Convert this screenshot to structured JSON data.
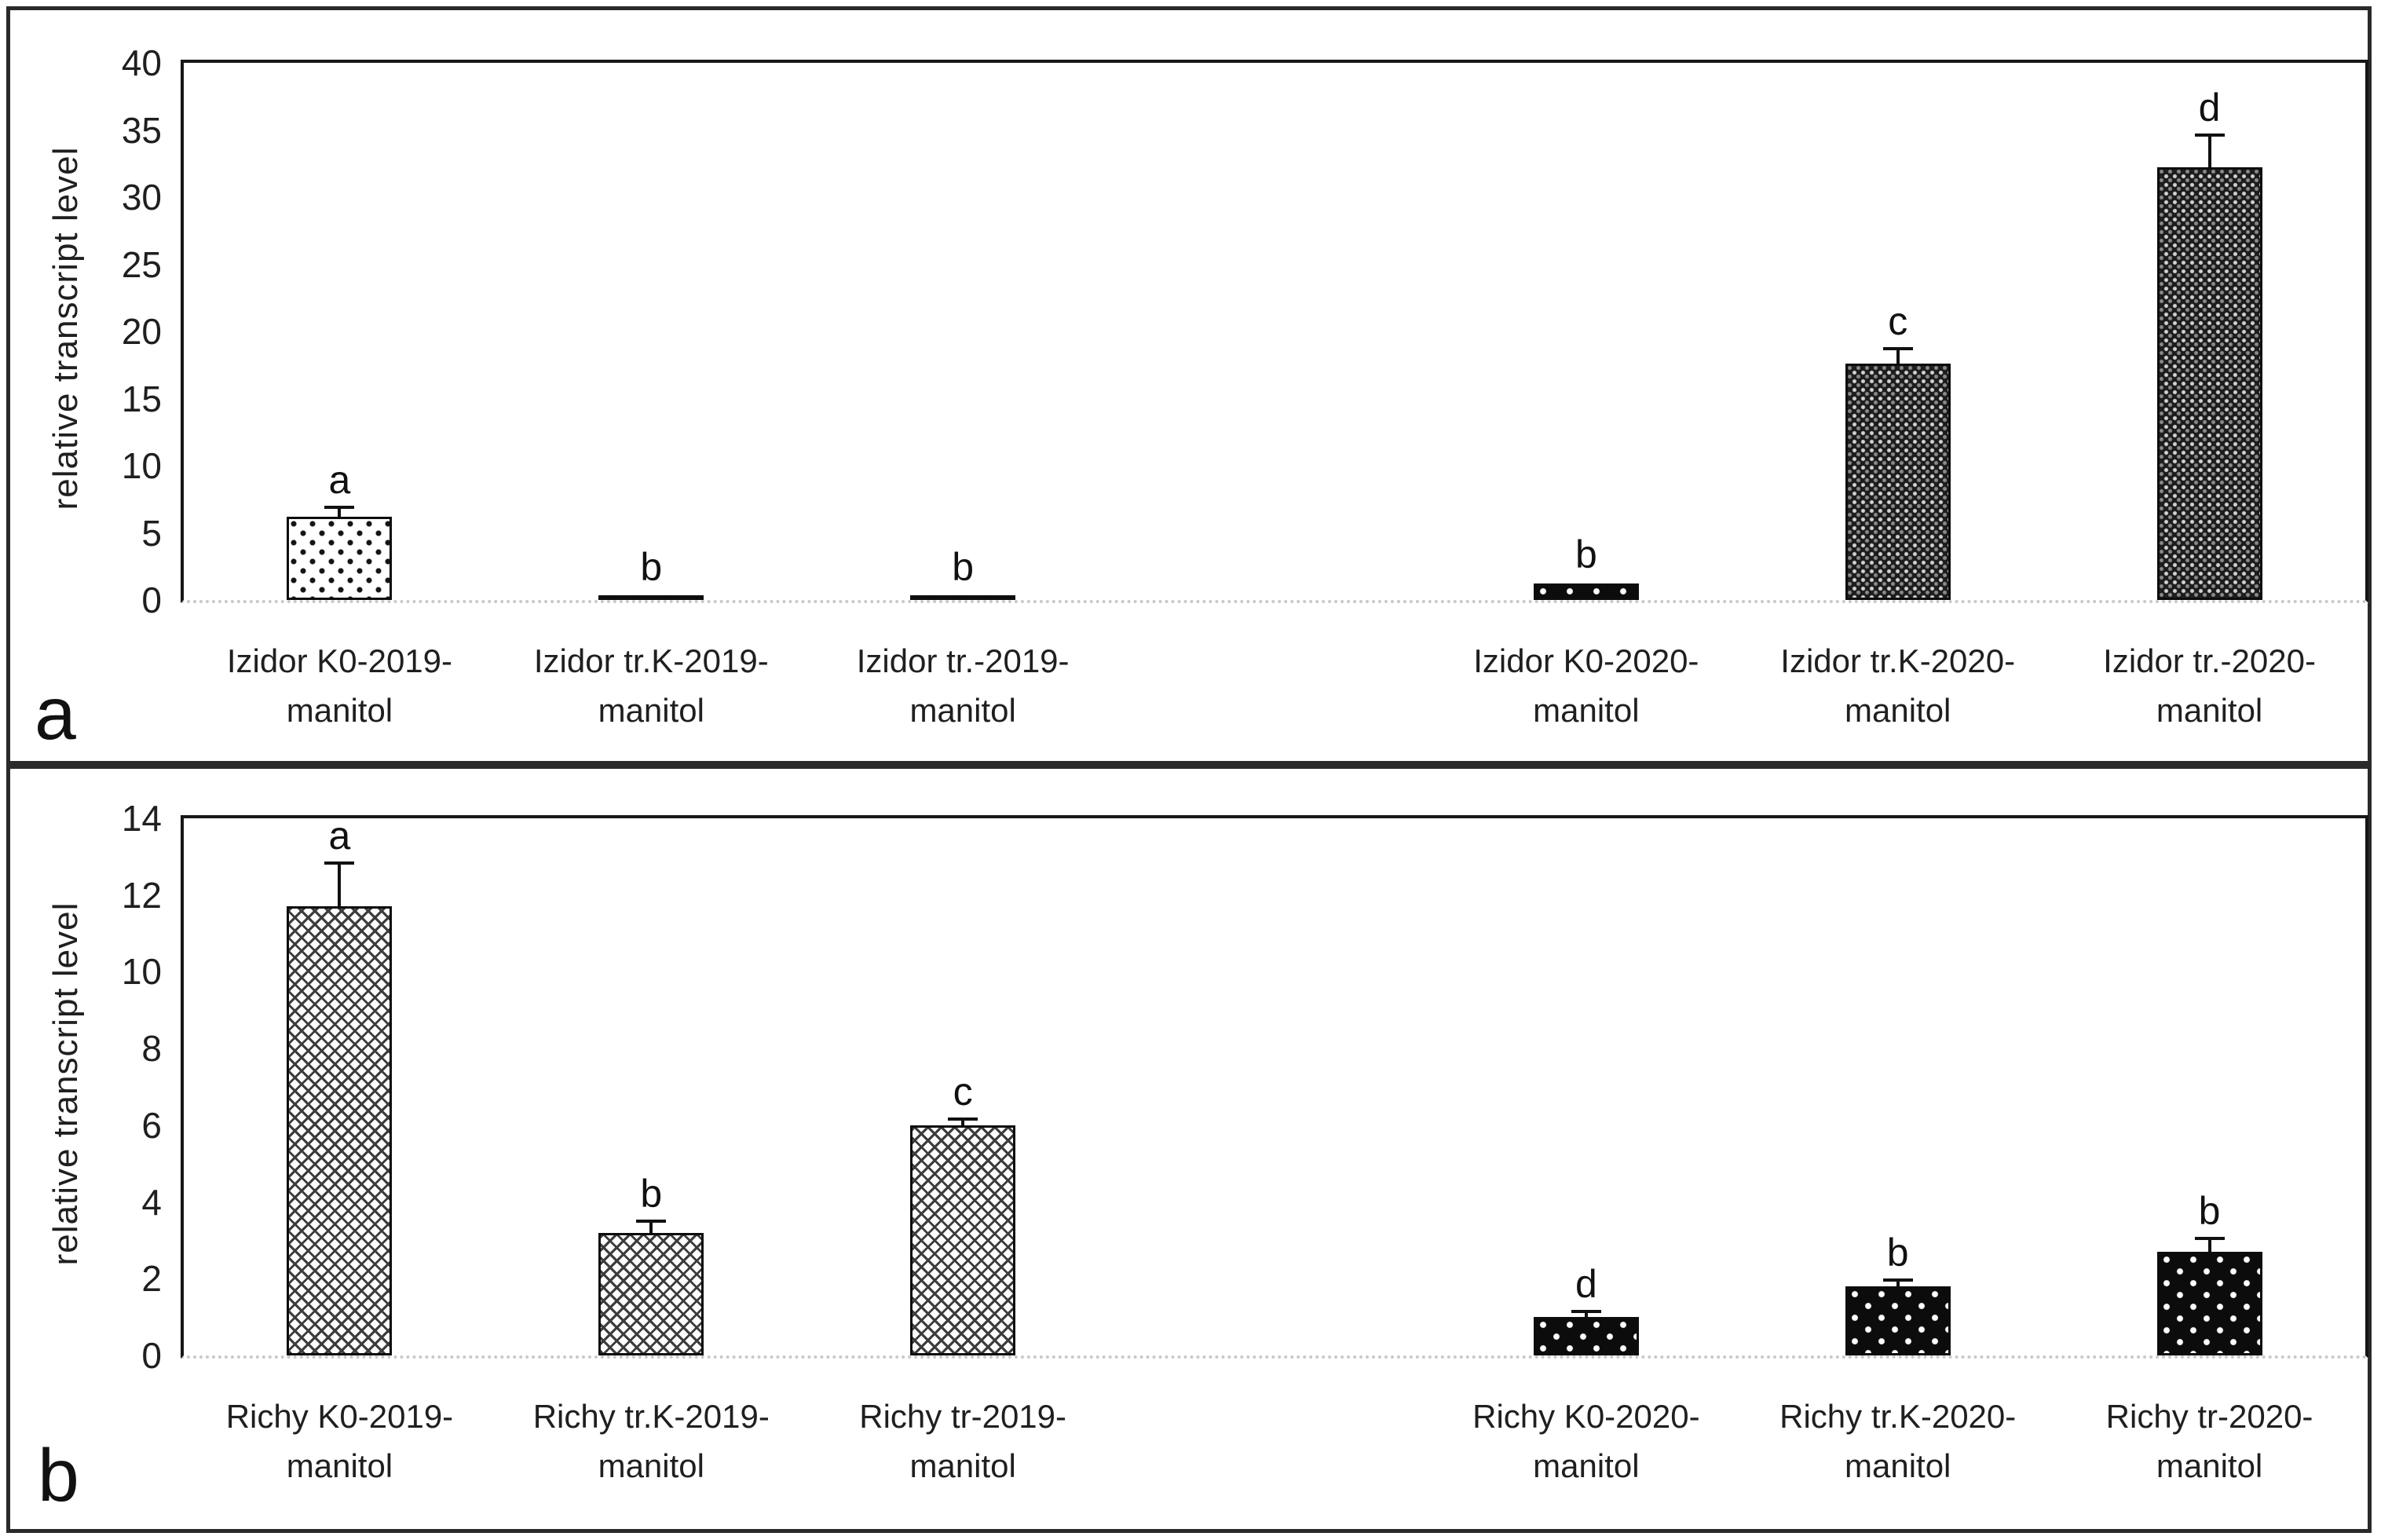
{
  "figure": {
    "background": "#ffffff",
    "panel_border_color": "#2a2a2a",
    "ink_color": "#111111",
    "baseline_dash_color": "#c9c9c9"
  },
  "chart_data": [
    {
      "type": "bar",
      "panel_letter": "a",
      "title": "",
      "xlabel": "",
      "ylabel": "relative transcript level",
      "ylim": [
        0,
        40
      ],
      "ytick_interval": 5,
      "grid": false,
      "legend": null,
      "n_slots": 7,
      "slots": [
        0,
        1,
        2,
        4,
        5,
        6
      ],
      "categories": [
        "Izidor K0-2019-\nmanitol",
        "Izidor tr.K-2019-\nmanitol",
        "Izidor tr.-2019-\nmanitol",
        "Izidor K0-2020-\nmanitol",
        "Izidor tr.K-2020-\nmanitol",
        "Izidor tr.-2020-\nmanitol"
      ],
      "values": [
        6.2,
        0.3,
        0.3,
        1.2,
        17.6,
        32.2
      ],
      "errors": [
        0.6,
        0,
        0,
        0,
        1.0,
        2.3
      ],
      "sig_letters": [
        "a",
        "b",
        "b",
        "b",
        "c",
        "d"
      ],
      "patterns": [
        "polka-light",
        "solid-black",
        "solid-black",
        "black-dots",
        "dense-dots",
        "dense-dots"
      ]
    },
    {
      "type": "bar",
      "panel_letter": "b",
      "title": "",
      "xlabel": "",
      "ylabel": "relative transcript level",
      "ylim": [
        0,
        14
      ],
      "ytick_interval": 2,
      "grid": false,
      "legend": null,
      "n_slots": 7,
      "slots": [
        0,
        1,
        2,
        4,
        5,
        6
      ],
      "categories": [
        "Richy K0-2019-\nmanitol",
        "Richy tr.K-2019-\nmanitol",
        "Richy tr-2019-\nmanitol",
        "Richy K0-2020-\nmanitol",
        "Richy tr.K-2020-\nmanitol",
        "Richy tr-2020-\nmanitol"
      ],
      "values": [
        11.7,
        3.2,
        6.0,
        1.0,
        1.8,
        2.7
      ],
      "errors": [
        1.1,
        0.25,
        0.12,
        0.1,
        0.12,
        0.3
      ],
      "sig_letters": [
        "a",
        "b",
        "c",
        "d",
        "b",
        "b"
      ],
      "patterns": [
        "crosshatch",
        "crosshatch",
        "crosshatch",
        "black-dots",
        "black-dots",
        "black-dots"
      ]
    }
  ]
}
